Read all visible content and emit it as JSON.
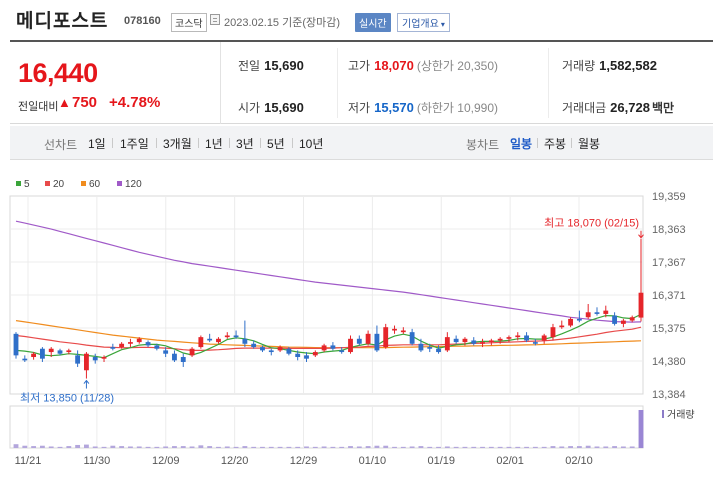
{
  "header": {
    "company_name": "메디포스트",
    "stock_code": "078160",
    "market": "코스닥",
    "date_text": "2023.02.15 기준(장마감)",
    "realtime_label": "실시간",
    "corp_info_label": "기업개요"
  },
  "quote": {
    "current_price": "16,440",
    "diff_label": "전일대비",
    "diff_arrow": "▲",
    "diff_value": "750",
    "diff_rate": "+4.78%",
    "prev_close": {
      "label": "전일",
      "value": "15,690"
    },
    "open": {
      "label": "시가",
      "value": "15,690"
    },
    "high": {
      "label": "고가",
      "value": "18,070",
      "limit_text": "(상한가 20,350)"
    },
    "low": {
      "label": "저가",
      "value": "15,570",
      "limit_text": "(하한가 10,990)"
    },
    "volume": {
      "label": "거래량",
      "value": "1,582,582"
    },
    "amount": {
      "label": "거래대금",
      "value": "26,728",
      "unit": "백만"
    }
  },
  "line_tabs": {
    "label": "선차트",
    "items": [
      "1일",
      "1주일",
      "3개월",
      "1년",
      "3년",
      "5년",
      "10년"
    ]
  },
  "candle_tabs": {
    "label": "봉차트",
    "items": [
      "일봉",
      "주봉",
      "월봉"
    ],
    "active": "일봉"
  },
  "chart_data": {
    "type": "candlestick",
    "legend": [
      "5",
      "20",
      "60",
      "120"
    ],
    "legend_colors": [
      "#3aa53a",
      "#e84a4a",
      "#f08c1e",
      "#a05ac8"
    ],
    "up_color": "#e5252a",
    "down_color": "#2f6fc9",
    "y_ticks": [
      "19,359",
      "18,363",
      "17,367",
      "16,371",
      "15,375",
      "14,380",
      "13,384"
    ],
    "ylim": [
      13384,
      19359
    ],
    "x_ticks": [
      "11/21",
      "11/30",
      "12/09",
      "12/20",
      "12/29",
      "01/10",
      "01/19",
      "02/01",
      "02/10"
    ],
    "max_annotation": "최고 18,070 (02/15)",
    "min_annotation": "최저 13,850 (11/28)",
    "volume_label": "거래량",
    "candles": [
      {
        "o": 15200,
        "h": 15250,
        "l": 14450,
        "c": 14550
      },
      {
        "o": 14450,
        "h": 14550,
        "l": 14350,
        "c": 14400
      },
      {
        "o": 14500,
        "h": 14650,
        "l": 14420,
        "c": 14600
      },
      {
        "o": 14750,
        "h": 14800,
        "l": 14350,
        "c": 14450
      },
      {
        "o": 14650,
        "h": 14800,
        "l": 14500,
        "c": 14750
      },
      {
        "o": 14700,
        "h": 14750,
        "l": 14550,
        "c": 14600
      },
      {
        "o": 14650,
        "h": 14750,
        "l": 14580,
        "c": 14700
      },
      {
        "o": 14550,
        "h": 14700,
        "l": 14200,
        "c": 14300
      },
      {
        "o": 14100,
        "h": 14650,
        "l": 13850,
        "c": 14600
      },
      {
        "o": 14500,
        "h": 14600,
        "l": 14300,
        "c": 14400
      },
      {
        "o": 14450,
        "h": 14550,
        "l": 14350,
        "c": 14500
      },
      {
        "o": 14800,
        "h": 14900,
        "l": 14700,
        "c": 14750
      },
      {
        "o": 14800,
        "h": 14950,
        "l": 14750,
        "c": 14900
      },
      {
        "o": 14900,
        "h": 15050,
        "l": 14800,
        "c": 14950
      },
      {
        "o": 14950,
        "h": 15100,
        "l": 14900,
        "c": 15050
      },
      {
        "o": 14950,
        "h": 15000,
        "l": 14800,
        "c": 14850
      },
      {
        "o": 14850,
        "h": 14900,
        "l": 14700,
        "c": 14750
      },
      {
        "o": 14700,
        "h": 14800,
        "l": 14500,
        "c": 14600
      },
      {
        "o": 14600,
        "h": 14700,
        "l": 14350,
        "c": 14400
      },
      {
        "o": 14500,
        "h": 14600,
        "l": 14200,
        "c": 14350
      },
      {
        "o": 14550,
        "h": 14800,
        "l": 14500,
        "c": 14750
      },
      {
        "o": 14800,
        "h": 15150,
        "l": 14750,
        "c": 15100
      },
      {
        "o": 15050,
        "h": 15200,
        "l": 14950,
        "c": 15000
      },
      {
        "o": 14950,
        "h": 15100,
        "l": 14900,
        "c": 15050
      },
      {
        "o": 15100,
        "h": 15250,
        "l": 15050,
        "c": 15150
      },
      {
        "o": 15150,
        "h": 15300,
        "l": 15050,
        "c": 15100
      },
      {
        "o": 15050,
        "h": 15600,
        "l": 14800,
        "c": 14900
      },
      {
        "o": 14900,
        "h": 15000,
        "l": 14750,
        "c": 14800
      },
      {
        "o": 14800,
        "h": 14850,
        "l": 14650,
        "c": 14700
      },
      {
        "o": 14700,
        "h": 14750,
        "l": 14550,
        "c": 14650
      },
      {
        "o": 14700,
        "h": 14850,
        "l": 14650,
        "c": 14800
      },
      {
        "o": 14750,
        "h": 14800,
        "l": 14550,
        "c": 14600
      },
      {
        "o": 14600,
        "h": 14700,
        "l": 14400,
        "c": 14500
      },
      {
        "o": 14550,
        "h": 14650,
        "l": 14350,
        "c": 14450
      },
      {
        "o": 14550,
        "h": 14700,
        "l": 14500,
        "c": 14650
      },
      {
        "o": 14700,
        "h": 14900,
        "l": 14650,
        "c": 14850
      },
      {
        "o": 14850,
        "h": 14950,
        "l": 14700,
        "c": 14750
      },
      {
        "o": 14700,
        "h": 14800,
        "l": 14600,
        "c": 14650
      },
      {
        "o": 14650,
        "h": 15150,
        "l": 14600,
        "c": 15050
      },
      {
        "o": 15050,
        "h": 15150,
        "l": 14850,
        "c": 14900
      },
      {
        "o": 14900,
        "h": 15300,
        "l": 14850,
        "c": 15200
      },
      {
        "o": 15200,
        "h": 15450,
        "l": 14650,
        "c": 14700
      },
      {
        "o": 14800,
        "h": 15500,
        "l": 14750,
        "c": 15400
      },
      {
        "o": 15300,
        "h": 15450,
        "l": 15200,
        "c": 15350
      },
      {
        "o": 15250,
        "h": 15400,
        "l": 15200,
        "c": 15300
      },
      {
        "o": 15250,
        "h": 15350,
        "l": 14850,
        "c": 14900
      },
      {
        "o": 14900,
        "h": 15050,
        "l": 14650,
        "c": 14700
      },
      {
        "o": 14800,
        "h": 14900,
        "l": 14650,
        "c": 14750
      },
      {
        "o": 14750,
        "h": 14850,
        "l": 14600,
        "c": 14650
      },
      {
        "o": 14700,
        "h": 15250,
        "l": 14650,
        "c": 15100
      },
      {
        "o": 15050,
        "h": 15150,
        "l": 14900,
        "c": 14950
      },
      {
        "o": 14950,
        "h": 15100,
        "l": 14850,
        "c": 15050
      },
      {
        "o": 15000,
        "h": 15100,
        "l": 14850,
        "c": 14900
      },
      {
        "o": 14900,
        "h": 15050,
        "l": 14800,
        "c": 14950
      },
      {
        "o": 14950,
        "h": 15050,
        "l": 14850,
        "c": 15000
      },
      {
        "o": 15000,
        "h": 15100,
        "l": 14900,
        "c": 15050
      },
      {
        "o": 15050,
        "h": 15150,
        "l": 14950,
        "c": 15100
      },
      {
        "o": 15100,
        "h": 15250,
        "l": 15000,
        "c": 15150
      },
      {
        "o": 15150,
        "h": 15250,
        "l": 14950,
        "c": 15000
      },
      {
        "o": 14950,
        "h": 15050,
        "l": 14850,
        "c": 14900
      },
      {
        "o": 15000,
        "h": 15200,
        "l": 14900,
        "c": 15150
      },
      {
        "o": 15100,
        "h": 15500,
        "l": 15000,
        "c": 15400
      },
      {
        "o": 15400,
        "h": 15600,
        "l": 15350,
        "c": 15450
      },
      {
        "o": 15450,
        "h": 15700,
        "l": 15400,
        "c": 15650
      },
      {
        "o": 15650,
        "h": 15900,
        "l": 15550,
        "c": 15600
      },
      {
        "o": 15700,
        "h": 16100,
        "l": 15650,
        "c": 15850
      },
      {
        "o": 15850,
        "h": 16000,
        "l": 15750,
        "c": 15800
      },
      {
        "o": 15800,
        "h": 16050,
        "l": 15700,
        "c": 15900
      },
      {
        "o": 15750,
        "h": 15850,
        "l": 15450,
        "c": 15500
      },
      {
        "o": 15500,
        "h": 15650,
        "l": 15400,
        "c": 15600
      },
      {
        "o": 15600,
        "h": 15750,
        "l": 15550,
        "c": 15700
      },
      {
        "o": 15690,
        "h": 18070,
        "l": 15570,
        "c": 16440
      }
    ],
    "ma5": [
      14700,
      14680,
      14640,
      14560,
      14540,
      14560,
      14600,
      14580,
      14550,
      14520,
      14480,
      14600,
      14720,
      14780,
      14860,
      14880,
      14880,
      14840,
      14740,
      14620,
      14560,
      14640,
      14760,
      14880,
      15030,
      15080,
      15050,
      14990,
      14880,
      14780,
      14750,
      14700,
      14650,
      14620,
      14600,
      14650,
      14680,
      14700,
      14790,
      14850,
      14900,
      14860,
      15020,
      15130,
      15190,
      15130,
      14980,
      14860,
      14770,
      14820,
      14870,
      14890,
      14950,
      14970,
      14970,
      14980,
      15000,
      15050,
      15060,
      15040,
      15040,
      15100,
      15200,
      15310,
      15430,
      15580,
      15670,
      15750,
      15740,
      15680,
      15660,
      15790
    ],
    "ma20": [
      15150,
      15120,
      15080,
      15040,
      15000,
      14960,
      14930,
      14900,
      14860,
      14830,
      14800,
      14790,
      14780,
      14780,
      14790,
      14790,
      14780,
      14770,
      14750,
      14720,
      14700,
      14700,
      14710,
      14720,
      14740,
      14760,
      14770,
      14770,
      14770,
      14770,
      14770,
      14760,
      14760,
      14760,
      14760,
      14760,
      14770,
      14780,
      14790,
      14800,
      14820,
      14830,
      14850,
      14860,
      14870,
      14870,
      14870,
      14870,
      14870,
      14880,
      14890,
      14900,
      14910,
      14920,
      14930,
      14940,
      14950,
      14960,
      14970,
      14980,
      14990,
      15010,
      15040,
      15070,
      15110,
      15150,
      15190,
      15240,
      15280,
      15310,
      15340,
      15400
    ],
    "ma60": [
      15600,
      15560,
      15520,
      15480,
      15440,
      15400,
      15360,
      15320,
      15280,
      15240,
      15200,
      15160,
      15130,
      15100,
      15070,
      15040,
      15010,
      14990,
      14970,
      14950,
      14930,
      14910,
      14890,
      14880,
      14870,
      14860,
      14850,
      14840,
      14830,
      14820,
      14810,
      14800,
      14795,
      14790,
      14785,
      14780,
      14780,
      14780,
      14780,
      14780,
      14780,
      14780,
      14785,
      14790,
      14795,
      14800,
      14805,
      14810,
      14815,
      14820,
      14825,
      14830,
      14835,
      14840,
      14845,
      14850,
      14855,
      14860,
      14865,
      14870,
      14880,
      14890,
      14900,
      14910,
      14920,
      14930,
      14940,
      14950,
      14960,
      14970,
      14980,
      14990
    ],
    "ma120": [
      18600,
      18540,
      18480,
      18420,
      18360,
      18290,
      18220,
      18150,
      18080,
      18010,
      17940,
      17870,
      17800,
      17730,
      17660,
      17600,
      17540,
      17480,
      17420,
      17370,
      17320,
      17280,
      17240,
      17200,
      17160,
      17120,
      17080,
      17040,
      17000,
      16960,
      16920,
      16880,
      16840,
      16800,
      16760,
      16730,
      16700,
      16670,
      16640,
      16610,
      16580,
      16550,
      16520,
      16490,
      16460,
      16420,
      16380,
      16340,
      16300,
      16260,
      16220,
      16180,
      16140,
      16100,
      16060,
      16020,
      15980,
      15940,
      15900,
      15860,
      15820,
      15780,
      15740,
      15700,
      15670,
      15640,
      15610,
      15590,
      15570,
      15560,
      15555,
      15560
    ],
    "volume": [
      0.1,
      0.06,
      0.05,
      0.06,
      0.04,
      0.03,
      0.05,
      0.08,
      0.09,
      0.04,
      0.03,
      0.06,
      0.05,
      0.04,
      0.04,
      0.03,
      0.03,
      0.04,
      0.05,
      0.05,
      0.04,
      0.07,
      0.05,
      0.03,
      0.04,
      0.03,
      0.05,
      0.03,
      0.03,
      0.03,
      0.03,
      0.03,
      0.03,
      0.04,
      0.03,
      0.04,
      0.03,
      0.03,
      0.05,
      0.04,
      0.05,
      0.06,
      0.06,
      0.03,
      0.03,
      0.04,
      0.05,
      0.03,
      0.03,
      0.04,
      0.03,
      0.03,
      0.03,
      0.03,
      0.03,
      0.03,
      0.03,
      0.03,
      0.03,
      0.03,
      0.03,
      0.05,
      0.04,
      0.05,
      0.05,
      0.06,
      0.04,
      0.04,
      0.05,
      0.04,
      0.04,
      1.0
    ]
  }
}
